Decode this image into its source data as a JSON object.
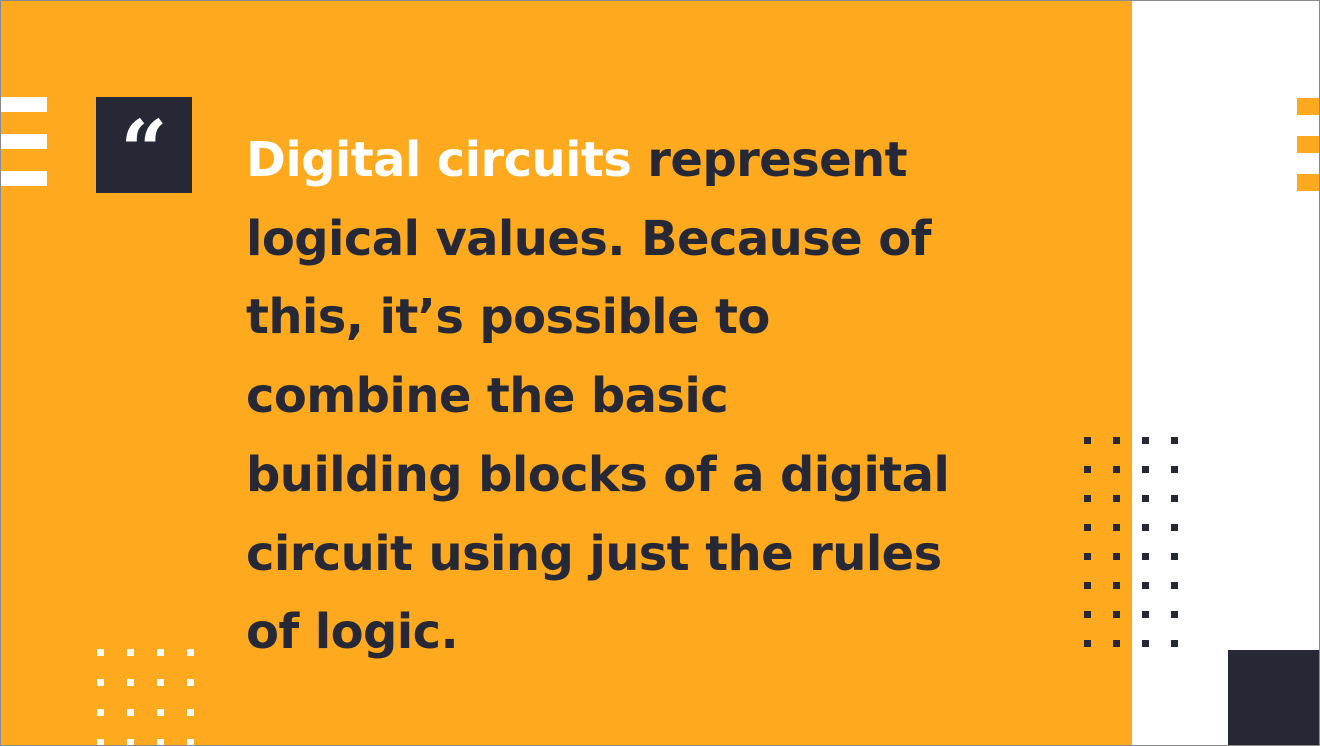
{
  "colors": {
    "accent": "#FFAA1E",
    "dark": "#262835",
    "highlight": "#FFFFFF",
    "background": "#FFFFFF"
  },
  "quote": {
    "icon": "quote-mark-icon",
    "glyph": "“",
    "highlight": "Digital circuits",
    "line1_rest": " represent",
    "line2": "logical values. Because of",
    "line3": "this, it’s possible to",
    "line4": "combine the basic",
    "line5": "building blocks of a digital",
    "line6": "circuit using just the rules",
    "line7": "of logic."
  },
  "decor": {
    "left_bar_count": 3,
    "right_bar_count": 3,
    "right_dot_rows": 8,
    "right_dot_cols": 4,
    "bottom_dot_rows": 4,
    "bottom_dot_cols": 4
  }
}
